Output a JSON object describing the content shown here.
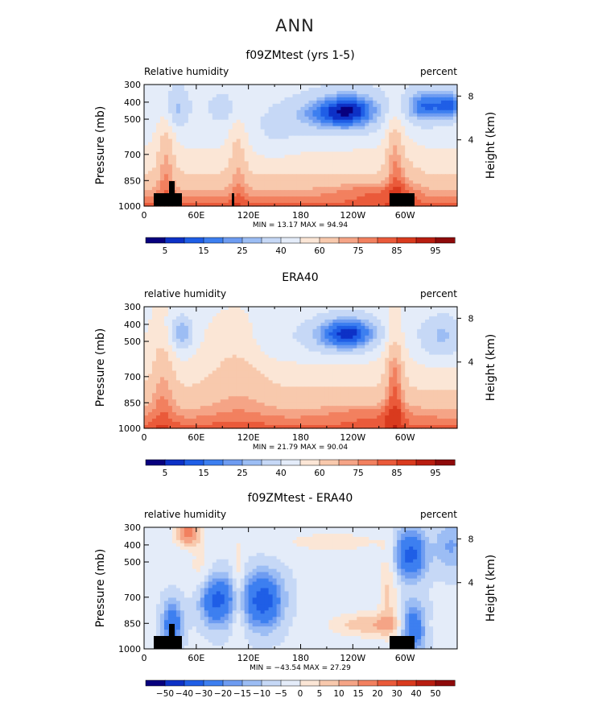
{
  "page_title": "ANN",
  "colors": {
    "neg": [
      "#08007e",
      "#0d31c6",
      "#1f5ee6",
      "#3d7ff0",
      "#6e9cf1",
      "#9cbdf4",
      "#c6d8f6",
      "#e4ecf9"
    ],
    "pos": [
      "#fbe6d6",
      "#f8c9ad",
      "#f5a486",
      "#f2805f",
      "#ea5a3a",
      "#d93a1e",
      "#b81d10",
      "#8e0a0a"
    ],
    "diff": [
      "#08007e",
      "#0d31c6",
      "#1f5ee6",
      "#3d7ff0",
      "#6e9cf1",
      "#9cbdf4",
      "#c6d8f6",
      "#e4ecf9",
      "#fbe6d6",
      "#f8c9ad",
      "#f5a486",
      "#f2805f",
      "#ea5a3a",
      "#d93a1e",
      "#b81d10",
      "#8e0a0a"
    ],
    "land": "#000000"
  },
  "chart_data": [
    {
      "type": "heatmap",
      "title": "f09ZMtest (yrs 1-5)",
      "left_label": "Relative humidity",
      "right_label": "percent",
      "ylabel": "Pressure (mb)",
      "y2label": "Height (km)",
      "x_ticks": [
        "0",
        "60E",
        "120E",
        "180",
        "120W",
        "60W"
      ],
      "y_ticks": [
        "300",
        "400",
        "500",
        "700",
        "850",
        "1000"
      ],
      "y2_ticks": [
        "8",
        "4"
      ],
      "stats": "MIN =   13.17   MAX =   94.94",
      "colorbar_labels": [
        "5",
        "15",
        "25",
        "40",
        "60",
        "75",
        "85",
        "95"
      ],
      "scale": "full",
      "min": 13.17,
      "max": 94.94
    },
    {
      "type": "heatmap",
      "title": "ERA40",
      "left_label": "relative humidity",
      "right_label": "percent",
      "ylabel": "Pressure (mb)",
      "y2label": "Height (km)",
      "x_ticks": [
        "0",
        "60E",
        "120E",
        "180",
        "120W",
        "60W"
      ],
      "y_ticks": [
        "300",
        "400",
        "500",
        "700",
        "850",
        "1000"
      ],
      "y2_ticks": [
        "8",
        "4"
      ],
      "stats": "MIN =   21.79   MAX =   90.04",
      "colorbar_labels": [
        "5",
        "15",
        "25",
        "40",
        "60",
        "75",
        "85",
        "95"
      ],
      "scale": "full",
      "min": 21.79,
      "max": 90.04
    },
    {
      "type": "heatmap",
      "title": "f09ZMtest - ERA40",
      "left_label": "relative humidity",
      "right_label": "percent",
      "ylabel": "Pressure (mb)",
      "y2label": "Height (km)",
      "x_ticks": [
        "0",
        "60E",
        "120E",
        "180",
        "120W",
        "60W"
      ],
      "y_ticks": [
        "300",
        "400",
        "500",
        "700",
        "850",
        "1000"
      ],
      "y2_ticks": [
        "8",
        "4"
      ],
      "stats": "MIN = −43.54   MAX =   27.29",
      "colorbar_labels": [
        "−50",
        "−40",
        "−30",
        "−20",
        "−15",
        "−10",
        "−5",
        "0",
        "5",
        "10",
        "15",
        "20",
        "30",
        "40",
        "50"
      ],
      "scale": "diff",
      "min": -43.54,
      "max": 27.29
    }
  ]
}
